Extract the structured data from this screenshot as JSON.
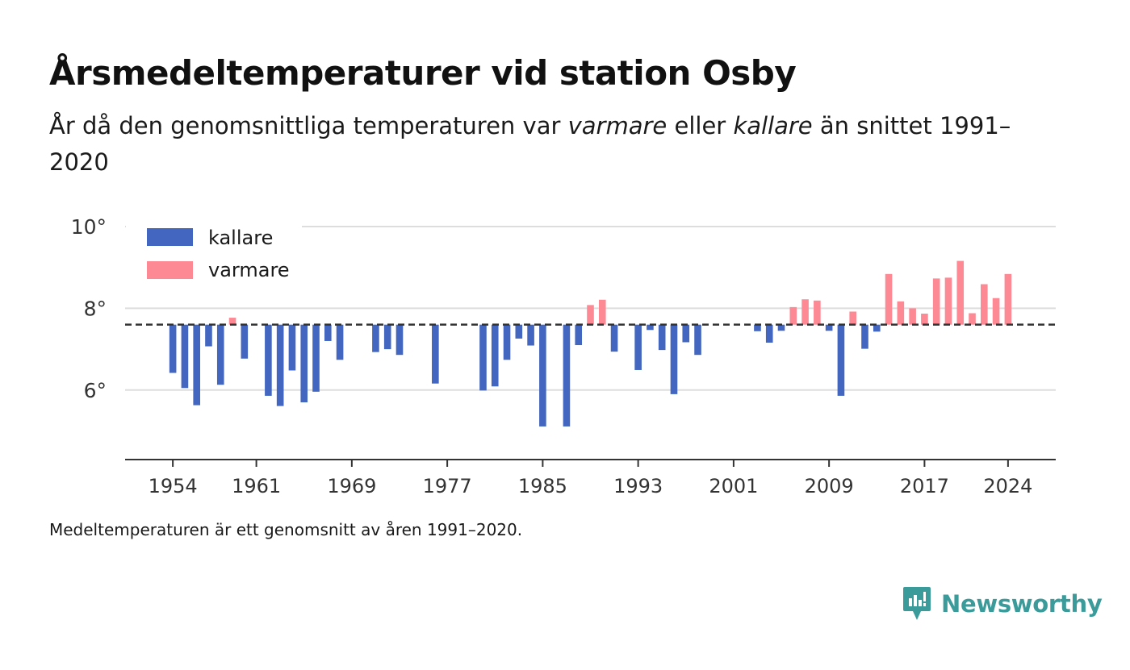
{
  "brand": {
    "name": "Newsworthy",
    "color": "#3a9b9a"
  },
  "colors": {
    "kallare": "#4366c0",
    "varmare": "#fc8994",
    "grid": "#dddddd",
    "axis": "#333333",
    "mean_line": "#333333"
  },
  "footnote": "Medeltemperaturen är ett genomsnitt av åren 1991–2020.",
  "chart_data": {
    "type": "bar",
    "title": "Årsmedeltemperaturer vid station Osby",
    "subtitle": {
      "part1": "År då den genomsnittliga temperaturen var ",
      "em1": "varmare",
      "part2": " eller ",
      "em2": "kallare",
      "part3": " än snittet 1991–2020"
    },
    "baseline": 7.6,
    "ylim": [
      4.3,
      10
    ],
    "yticks": [
      6,
      8,
      10
    ],
    "ytick_labels": [
      "6°",
      "8°",
      "10°"
    ],
    "xlim": [
      1950,
      2028
    ],
    "xticks": [
      1954,
      1961,
      1969,
      1977,
      1985,
      1993,
      2001,
      2009,
      2017,
      2024
    ],
    "legend": {
      "position": "top-left",
      "items": [
        {
          "key": "kallare",
          "label": "kallare"
        },
        {
          "key": "varmare",
          "label": "varmare"
        }
      ]
    },
    "series": [
      {
        "name": "kallare",
        "color": "#4366c0",
        "x": [
          1954,
          1955,
          1956,
          1957,
          1958,
          1960,
          1962,
          1963,
          1964,
          1965,
          1966,
          1967,
          1968,
          1971,
          1972,
          1973,
          1976,
          1980,
          1981,
          1982,
          1983,
          1984,
          1985,
          1987,
          1988,
          1991,
          1993,
          1994,
          1995,
          1996,
          1997,
          1998,
          2003,
          2004,
          2005,
          2009,
          2010,
          2012,
          2013
        ],
        "values": [
          6.42,
          6.05,
          5.63,
          7.07,
          6.13,
          6.77,
          5.86,
          5.61,
          6.48,
          5.7,
          5.96,
          7.2,
          6.74,
          6.93,
          7.0,
          6.86,
          6.16,
          5.99,
          6.09,
          6.74,
          7.26,
          7.09,
          5.11,
          5.11,
          7.1,
          6.94,
          6.49,
          7.47,
          6.98,
          5.9,
          7.17,
          6.86,
          7.44,
          7.16,
          7.45,
          7.45,
          5.86,
          7.01,
          7.43
        ]
      },
      {
        "name": "varmare",
        "color": "#fc8994",
        "x": [
          1959,
          1989,
          1990,
          2006,
          2007,
          2008,
          2011,
          2014,
          2015,
          2016,
          2017,
          2018,
          2019,
          2020,
          2021,
          2022,
          2023,
          2024
        ],
        "values": [
          7.77,
          8.08,
          8.21,
          8.03,
          8.22,
          8.19,
          7.92,
          8.84,
          8.17,
          8.0,
          7.87,
          8.73,
          8.75,
          9.16,
          7.88,
          8.59,
          8.25,
          8.84
        ]
      }
    ]
  }
}
